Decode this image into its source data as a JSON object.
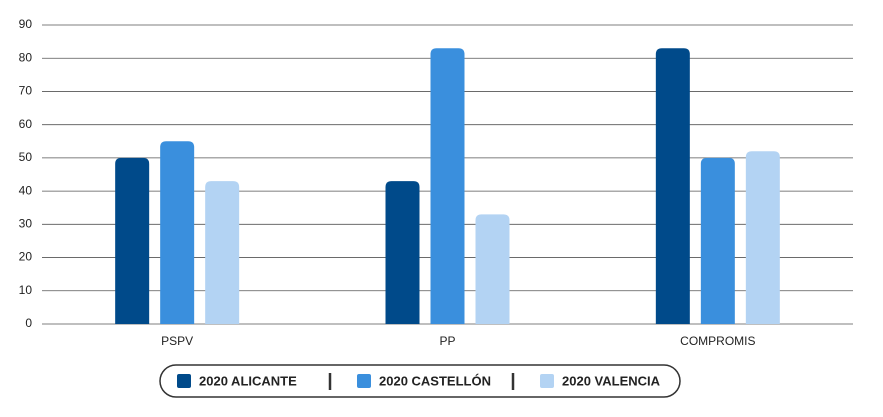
{
  "chart_data": {
    "type": "bar",
    "categories": [
      "PSPV",
      "PP",
      "COMPROMIS"
    ],
    "series": [
      {
        "name": "2020 ALICANTE",
        "color": "#004a8a",
        "values": [
          50,
          43,
          83
        ]
      },
      {
        "name": "2020 CASTELLÓN",
        "color": "#3a8fdd",
        "values": [
          55,
          83,
          50
        ]
      },
      {
        "name": "2020 VALENCIA",
        "color": "#b3d3f3",
        "values": [
          43,
          33,
          52
        ]
      }
    ],
    "ylim": [
      0,
      90
    ],
    "yticks": [
      0,
      10,
      20,
      30,
      40,
      50,
      60,
      70,
      80,
      90
    ],
    "grid": true
  }
}
